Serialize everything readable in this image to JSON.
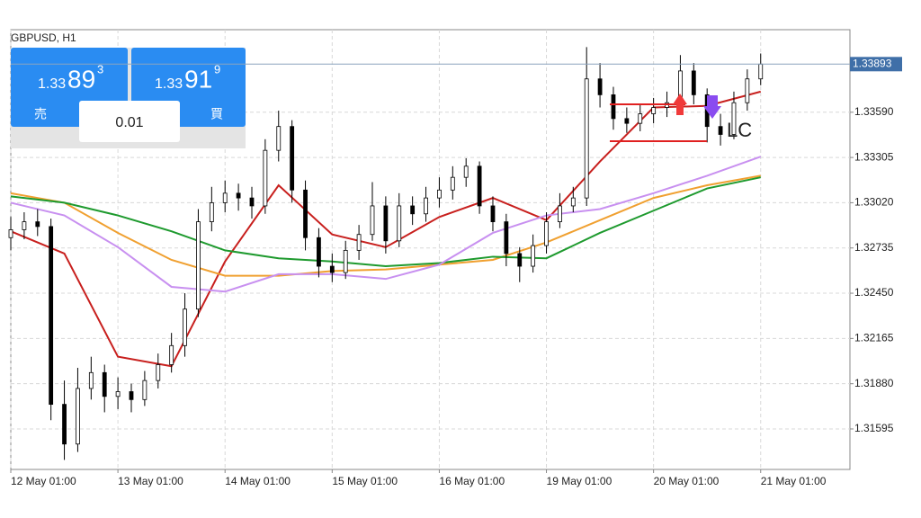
{
  "chart_data": {
    "type": "candlestick",
    "title": "GBPUSD, H1",
    "x": [
      0,
      3,
      6,
      9,
      12,
      15,
      18,
      21,
      24,
      27,
      30,
      33,
      36,
      39,
      42,
      45,
      48,
      51,
      54,
      57,
      60,
      63,
      66,
      69,
      72,
      75,
      78,
      81,
      84,
      87,
      90,
      93,
      96,
      99,
      102,
      105,
      108,
      111,
      114,
      117,
      120,
      123,
      126,
      129,
      132,
      135,
      138,
      141,
      144,
      147,
      150,
      153,
      156,
      159,
      162,
      165,
      168
    ],
    "open": [
      1.328,
      1.3285,
      1.329,
      1.3287,
      1.3175,
      1.315,
      1.3185,
      1.3195,
      1.318,
      1.3183,
      1.3178,
      1.319,
      1.32,
      1.3212,
      1.3235,
      1.329,
      1.3302,
      1.3308,
      1.3305,
      1.33,
      1.3335,
      1.335,
      1.331,
      1.328,
      1.3262,
      1.3258,
      1.3272,
      1.3282,
      1.33,
      1.3278,
      1.33,
      1.3295,
      1.3305,
      1.331,
      1.3318,
      1.3325,
      1.33,
      1.329,
      1.327,
      1.3262,
      1.3275,
      1.329,
      1.33,
      1.3305,
      1.338,
      1.337,
      1.3355,
      1.3352,
      1.3358,
      1.3362,
      1.3365,
      1.3385,
      1.337,
      1.335,
      1.3345,
      1.3365,
      1.338
    ],
    "high": [
      1.3293,
      1.3296,
      1.3298,
      1.3292,
      1.319,
      1.3198,
      1.3205,
      1.32,
      1.3192,
      1.3188,
      1.3196,
      1.3207,
      1.322,
      1.3245,
      1.3298,
      1.3312,
      1.3316,
      1.3314,
      1.3312,
      1.3342,
      1.336,
      1.3354,
      1.3316,
      1.3286,
      1.327,
      1.3278,
      1.3288,
      1.3315,
      1.3306,
      1.3308,
      1.3306,
      1.3312,
      1.3318,
      1.3325,
      1.333,
      1.3328,
      1.3306,
      1.3295,
      1.3274,
      1.3282,
      1.3296,
      1.3308,
      1.3312,
      1.34,
      1.339,
      1.3375,
      1.3362,
      1.3364,
      1.3368,
      1.3372,
      1.3395,
      1.339,
      1.3374,
      1.3358,
      1.3372,
      1.3386,
      1.3396
    ],
    "low": [
      1.3272,
      1.3279,
      1.3281,
      1.3165,
      1.314,
      1.3145,
      1.3178,
      1.317,
      1.3172,
      1.317,
      1.3174,
      1.3185,
      1.3195,
      1.3205,
      1.323,
      1.3284,
      1.3296,
      1.3297,
      1.3292,
      1.3295,
      1.3328,
      1.3302,
      1.3272,
      1.3255,
      1.3252,
      1.3254,
      1.3266,
      1.3278,
      1.327,
      1.3274,
      1.3288,
      1.329,
      1.3299,
      1.3304,
      1.3312,
      1.3295,
      1.3284,
      1.3262,
      1.3252,
      1.3258,
      1.327,
      1.3286,
      1.3296,
      1.33,
      1.3362,
      1.3348,
      1.3346,
      1.3347,
      1.3352,
      1.3356,
      1.336,
      1.3364,
      1.334,
      1.3338,
      1.3342,
      1.336,
      1.3376
    ],
    "close": [
      1.3285,
      1.329,
      1.3287,
      1.3175,
      1.315,
      1.3185,
      1.3195,
      1.318,
      1.3183,
      1.3178,
      1.319,
      1.32,
      1.3212,
      1.3235,
      1.329,
      1.3302,
      1.3308,
      1.3305,
      1.33,
      1.3335,
      1.335,
      1.331,
      1.328,
      1.3262,
      1.3258,
      1.3272,
      1.3282,
      1.33,
      1.3278,
      1.33,
      1.3295,
      1.3305,
      1.331,
      1.3318,
      1.3325,
      1.33,
      1.329,
      1.327,
      1.3262,
      1.3275,
      1.329,
      1.33,
      1.3305,
      1.338,
      1.337,
      1.3355,
      1.3352,
      1.3358,
      1.3362,
      1.3365,
      1.3385,
      1.337,
      1.335,
      1.3345,
      1.3365,
      1.338,
      1.33893
    ],
    "indicators": [
      {
        "color": "#c8201e",
        "x": [
          0,
          12,
          24,
          36,
          48,
          60,
          72,
          84,
          96,
          108,
          120,
          132,
          144,
          156,
          168
        ],
        "values": [
          1.3284,
          1.327,
          1.3205,
          1.3199,
          1.3265,
          1.3313,
          1.3282,
          1.3274,
          1.3293,
          1.3305,
          1.3291,
          1.3328,
          1.3362,
          1.3363,
          1.3372
        ]
      },
      {
        "color": "#f0a030",
        "x": [
          0,
          12,
          24,
          36,
          48,
          60,
          72,
          84,
          96,
          108,
          120,
          132,
          144,
          156,
          168
        ],
        "values": [
          1.3308,
          1.3302,
          1.3283,
          1.3266,
          1.3256,
          1.3256,
          1.3259,
          1.326,
          1.3263,
          1.3266,
          1.3277,
          1.3291,
          1.3305,
          1.3313,
          1.3319
        ]
      },
      {
        "color": "#1e9a2e",
        "x": [
          0,
          12,
          24,
          36,
          48,
          60,
          72,
          84,
          96,
          108,
          120,
          132,
          144,
          156,
          168
        ],
        "values": [
          1.3306,
          1.3302,
          1.3294,
          1.3284,
          1.3272,
          1.3267,
          1.3265,
          1.3262,
          1.3264,
          1.3268,
          1.3267,
          1.3283,
          1.3297,
          1.3311,
          1.3318
        ]
      },
      {
        "color": "#c890f0",
        "x": [
          0,
          12,
          24,
          36,
          48,
          60,
          72,
          84,
          96,
          108,
          120,
          132,
          144,
          156,
          168
        ],
        "values": [
          1.3302,
          1.3294,
          1.3274,
          1.3249,
          1.3246,
          1.3257,
          1.3257,
          1.3254,
          1.3263,
          1.3283,
          1.3294,
          1.3298,
          1.3308,
          1.3319,
          1.3331
        ]
      }
    ],
    "up_color": "#ffffff",
    "down_color": "#000000",
    "xlim": [
      0,
      188
    ],
    "xticks": [
      {
        "value": 0,
        "label": "12 May 01:00"
      },
      {
        "value": 24,
        "label": "13 May 01:00"
      },
      {
        "value": 48,
        "label": "14 May 01:00"
      },
      {
        "value": 72,
        "label": "15 May 01:00"
      },
      {
        "value": 96,
        "label": "16 May 01:00"
      },
      {
        "value": 120,
        "label": "19 May 01:00"
      },
      {
        "value": 144,
        "label": "20 May 01:00"
      },
      {
        "value": 168,
        "label": "21 May 01:00"
      }
    ],
    "ylim": [
      1.3134,
      1.3411
    ],
    "yticks": [
      1.31595,
      {
        "value": 1.3188,
        "label": "1.31880"
      },
      1.32165,
      {
        "value": 1.3245,
        "label": "1.32450"
      },
      1.32735,
      {
        "value": 1.3302,
        "label": "1.33020"
      },
      1.33305,
      {
        "value": 1.3359,
        "label": "1.33590"
      }
    ],
    "last_price": 1.33893,
    "annotation": "LC",
    "grid": true
  },
  "panel": {
    "sell": {
      "prefix": "1.33",
      "pips": "89",
      "point": "3",
      "label": "売"
    },
    "buy": {
      "prefix": "1.33",
      "pips": "91",
      "point": "9",
      "label": "買"
    },
    "lot": "0.01"
  }
}
